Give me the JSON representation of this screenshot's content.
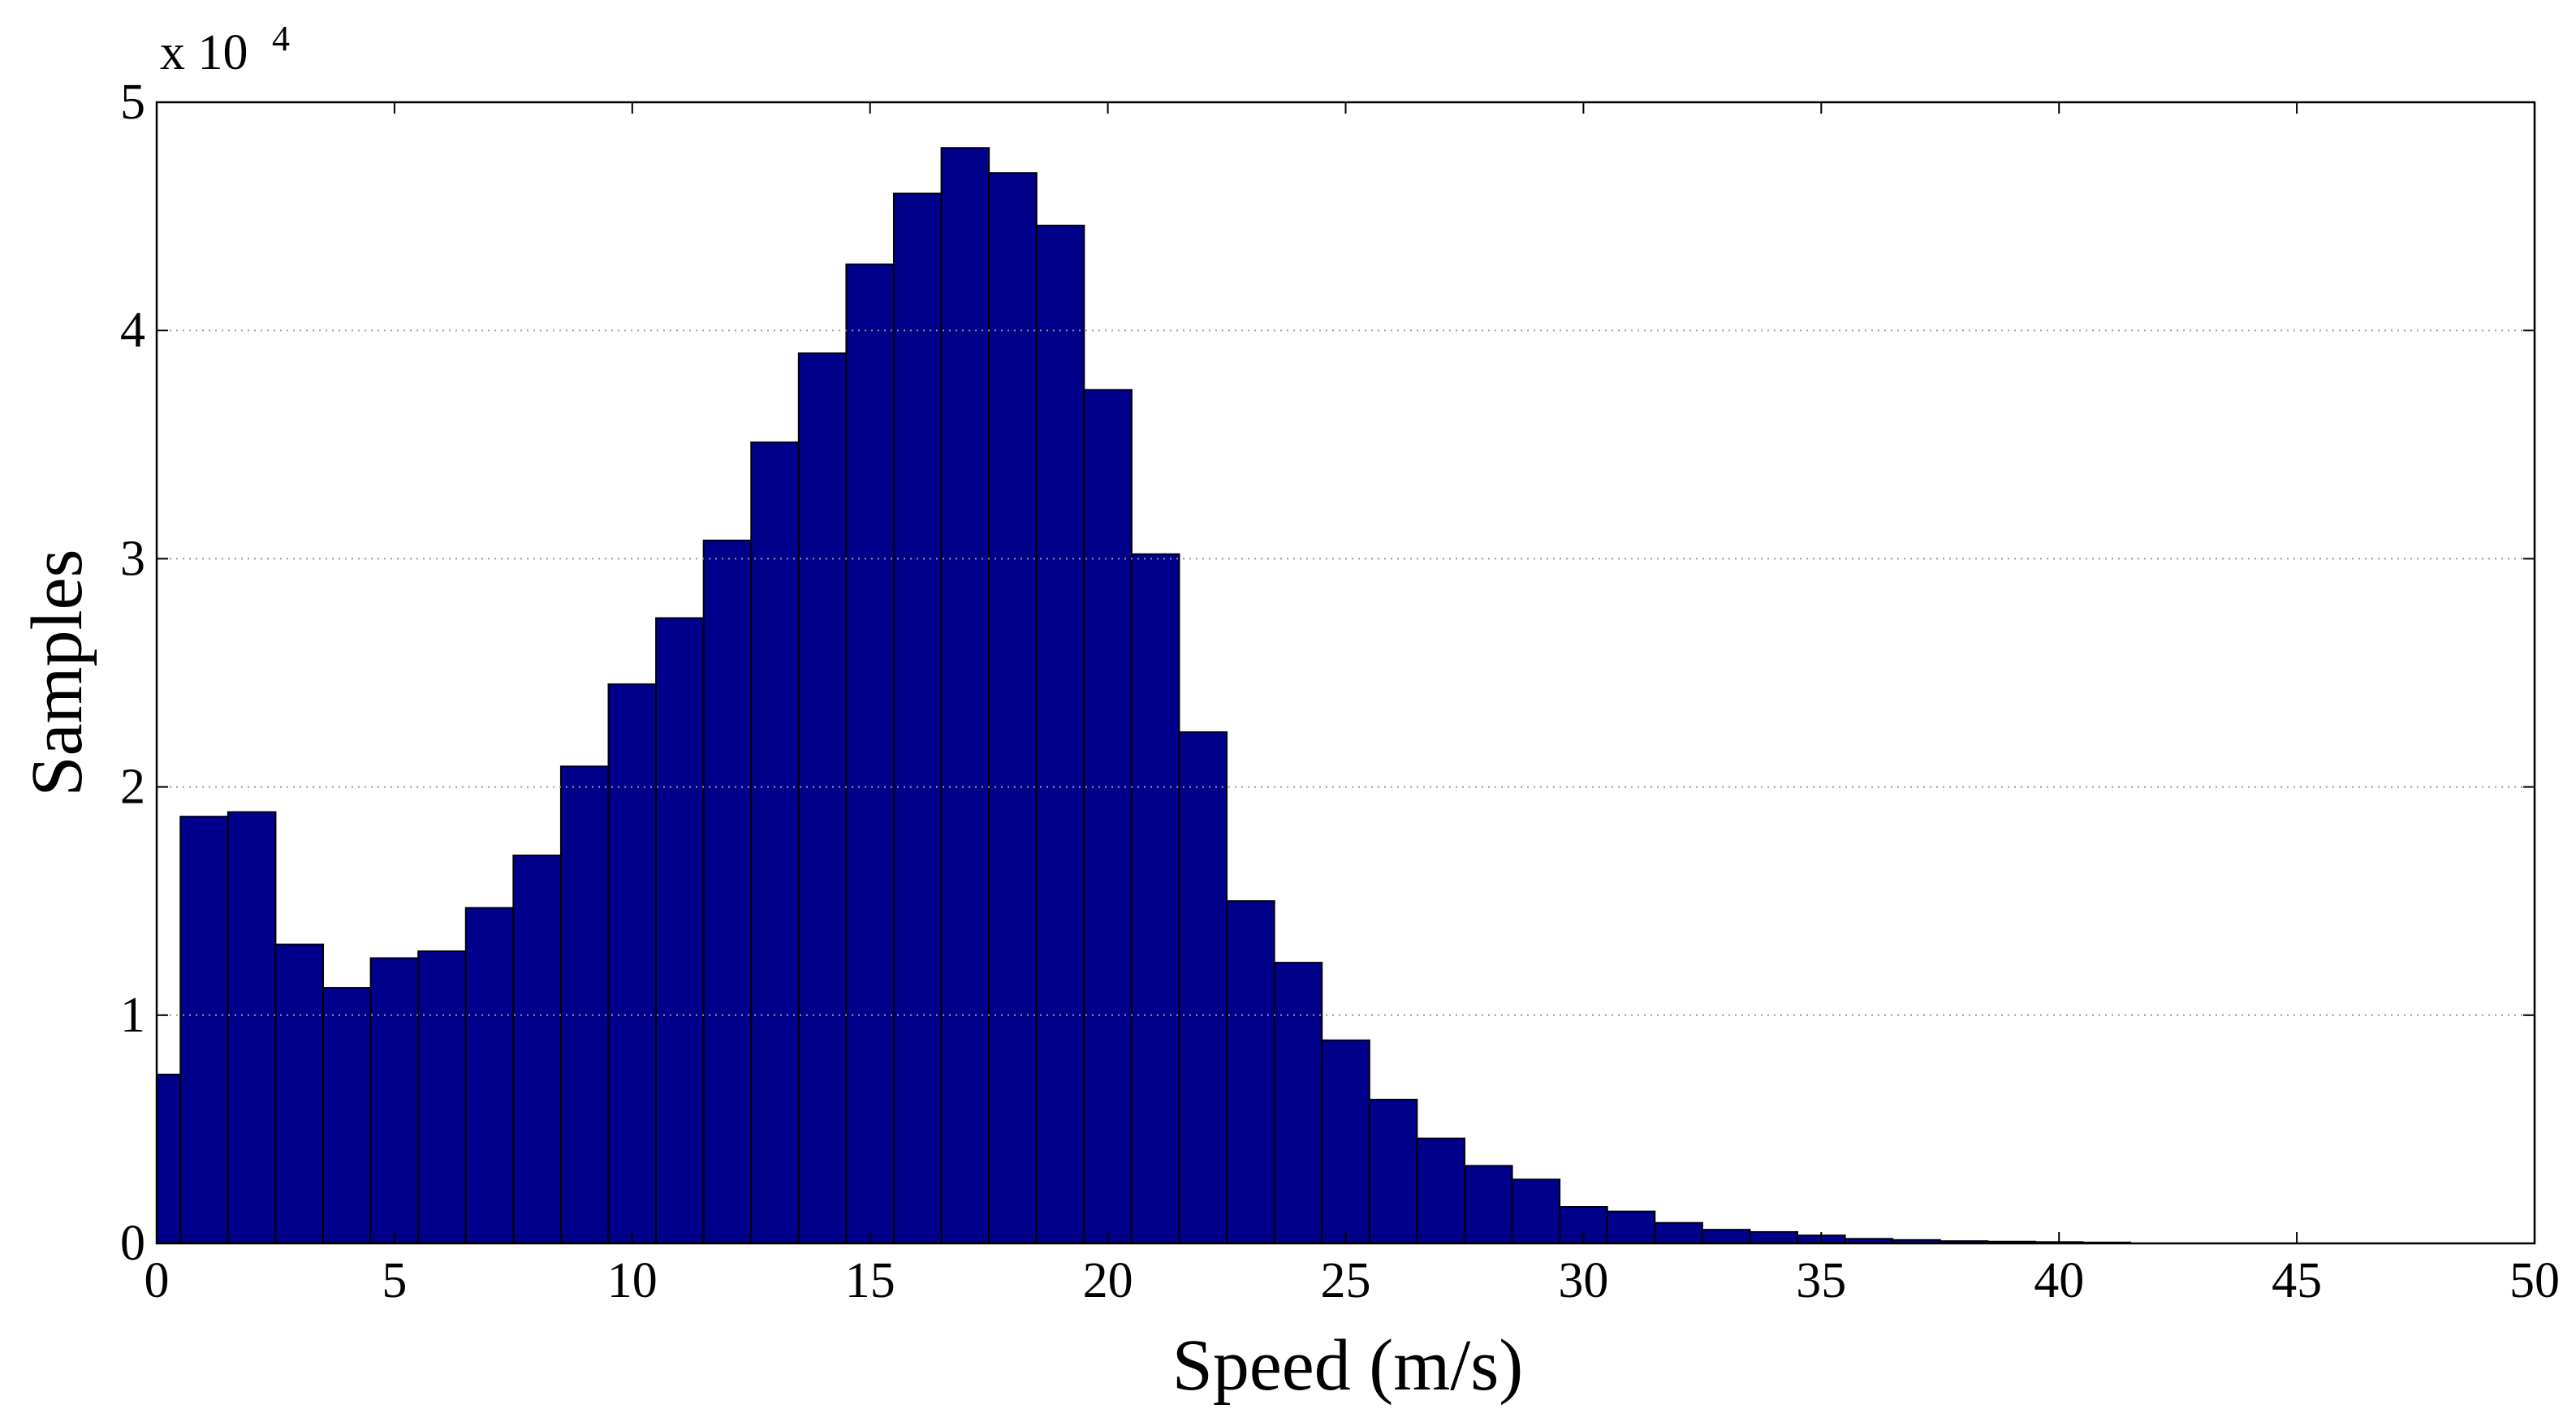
{
  "chart_data": {
    "type": "histogram",
    "x_label": "Speed (m/s)",
    "y_label": "Samples",
    "y_multiplier": "x 10",
    "y_multiplier_exponent": "4",
    "bins": [
      -0.5,
      0.5,
      1.5,
      2.5,
      3.5,
      4.5,
      5.5,
      6.5,
      7.5,
      8.5,
      9.5,
      10.5,
      11.5,
      12.5,
      13.5,
      14.5,
      15.5,
      16.5,
      17.5,
      18.5,
      19.5,
      20.5,
      21.5,
      22.5,
      23.5,
      24.5,
      25.5,
      26.5,
      27.5,
      28.5,
      29.5,
      30.5,
      31.5,
      32.5,
      33.5,
      34.5,
      35.5,
      36.5,
      37.5,
      38.5,
      39.5,
      40.5,
      41.5
    ],
    "counts": [
      0.74,
      1.87,
      1.89,
      1.31,
      1.12,
      1.25,
      1.28,
      1.47,
      1.7,
      2.09,
      2.45,
      2.74,
      3.08,
      3.51,
      3.9,
      4.29,
      4.6,
      4.8,
      4.69,
      4.46,
      3.74,
      3.02,
      2.24,
      1.5,
      1.23,
      0.89,
      0.63,
      0.46,
      0.34,
      0.28,
      0.16,
      0.14,
      0.09,
      0.06,
      0.05,
      0.035,
      0.02,
      0.015,
      0.01,
      0.008,
      0.006,
      0.004
    ],
    "color": "#00008b",
    "xlim": [
      0,
      50
    ],
    "xticks": [
      0,
      5,
      10,
      15,
      20,
      25,
      30,
      35,
      40,
      45,
      50
    ],
    "ylim": [
      0,
      5
    ],
    "yticks": [
      0,
      1,
      2,
      3,
      4,
      5
    ],
    "grid": true
  }
}
